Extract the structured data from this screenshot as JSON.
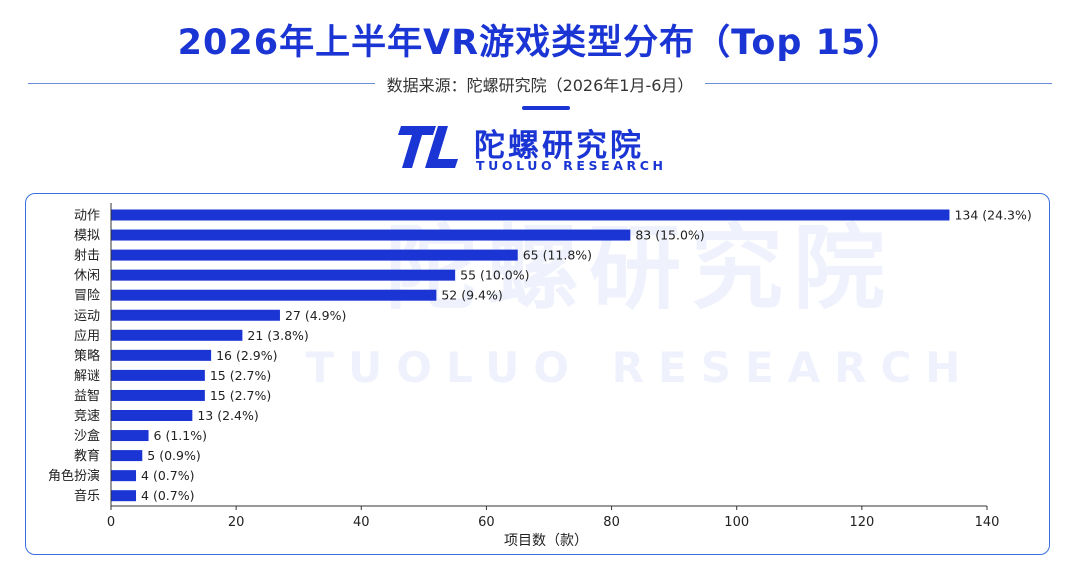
{
  "header": {
    "title": "2026年上半年VR游戏类型分布（Top 15）",
    "source": "数据来源：陀螺研究院（2026年1月-6月）"
  },
  "logo": {
    "cn": "陀螺研究院",
    "en": "TUOLUO RESEARCH"
  },
  "watermark": {
    "cn": "陀螺研究院",
    "en": "TUOLUO RESEARCH"
  },
  "colors": {
    "brand": "#1a35d4",
    "bar": "#1a35d4",
    "frame": "#3b6fe0"
  },
  "chart_data": {
    "type": "bar",
    "orientation": "horizontal",
    "categories": [
      "动作",
      "模拟",
      "射击",
      "休闲",
      "冒险",
      "运动",
      "应用",
      "策略",
      "解谜",
      "益智",
      "竞速",
      "沙盒",
      "教育",
      "角色扮演",
      "音乐"
    ],
    "values": [
      134,
      83,
      65,
      55,
      52,
      27,
      21,
      16,
      15,
      15,
      13,
      6,
      5,
      4,
      4
    ],
    "data_labels": [
      "134 (24.3%)",
      "83 (15.0%)",
      "65 (11.8%)",
      "55 (10.0%)",
      "52 (9.4%)",
      "27 (4.9%)",
      "21 (3.8%)",
      "16 (2.9%)",
      "15 (2.7%)",
      "15 (2.7%)",
      "13 (2.4%)",
      "6 (1.1%)",
      "5 (0.9%)",
      "4 (0.7%)",
      "4 (0.7%)"
    ],
    "xlabel": "项目数（款）",
    "ylabel": "",
    "xlim": [
      0,
      140
    ],
    "xticks": [
      0,
      20,
      40,
      60,
      80,
      100,
      120,
      140
    ],
    "grid": false,
    "legend": "none"
  }
}
